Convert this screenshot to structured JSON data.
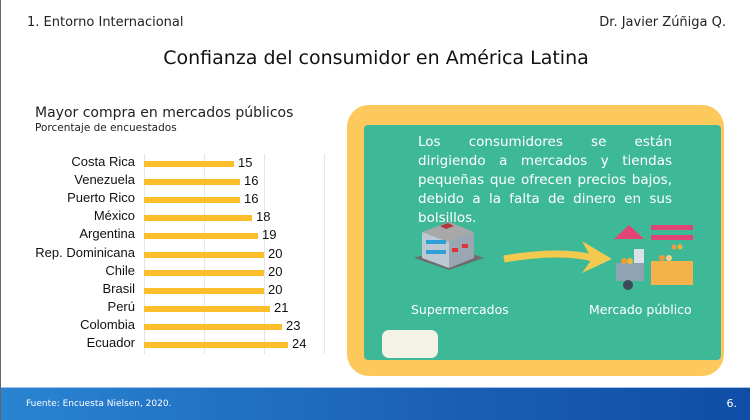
{
  "header": {
    "section": "1. Entorno Internacional",
    "author": "Dr. Javier Zúñiga Q."
  },
  "title": "Confianza del consumidor en América Latina",
  "chart_data": {
    "type": "bar",
    "orientation": "horizontal",
    "title": "Mayor compra en mercados públicos",
    "subtitle": "Porcentaje de encuestados",
    "categories": [
      "Costa Rica",
      "Venezuela",
      "Puerto Rico",
      "México",
      "Argentina",
      "Rep. Dominicana",
      "Chile",
      "Brasil",
      "Perú",
      "Colombia",
      "Ecuador"
    ],
    "values": [
      15,
      16,
      16,
      18,
      19,
      20,
      20,
      20,
      21,
      23,
      24
    ],
    "xlim": [
      0,
      30
    ],
    "grid": true,
    "color": "#fbbf2b"
  },
  "panel": {
    "message": "Los consumidores se están dirigiendo a mercados y tiendas pequeñas que ofrecen precios bajos, debido a la falta de dinero en sus bolsillos.",
    "left_caption": "Supermercados",
    "right_caption": "Mercado público"
  },
  "footer": {
    "source": "Fuente: Encuesta Nielsen, 2020.",
    "page": "6."
  }
}
